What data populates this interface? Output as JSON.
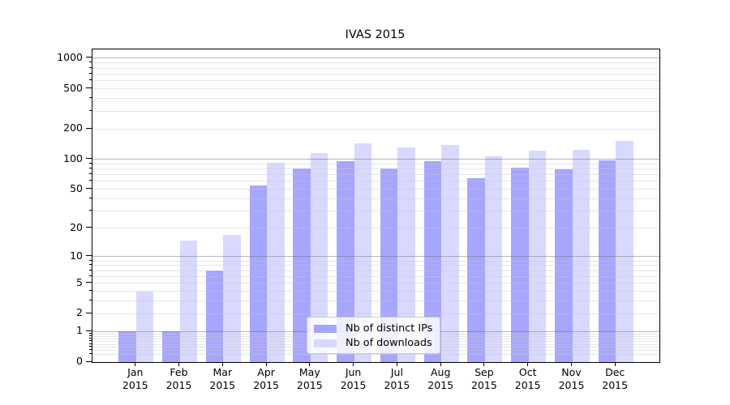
{
  "chart_data": {
    "type": "bar",
    "title": "IVAS 2015",
    "months": [
      "Jan",
      "Feb",
      "Mar",
      "Apr",
      "May",
      "Jun",
      "Jul",
      "Aug",
      "Sep",
      "Oct",
      "Nov",
      "Dec"
    ],
    "year": "2015",
    "series": [
      {
        "name": "Nb of distinct IPs",
        "color": "#a6a6ff",
        "values": [
          1,
          1,
          7,
          55,
          81,
          96,
          81,
          95,
          65,
          82,
          79,
          98
        ]
      },
      {
        "name": "Nb of downloads",
        "color": "#d9d9ff",
        "values": [
          4,
          15,
          17,
          92,
          114,
          145,
          131,
          138,
          107,
          122,
          125,
          151
        ]
      }
    ],
    "xlabel": "",
    "ylabel": "",
    "yscale": "log1p",
    "ylim": [
      0,
      1224
    ],
    "ytick_values": [
      0,
      1,
      2,
      5,
      10,
      20,
      50,
      100,
      200,
      500,
      1000
    ],
    "major_grid_values": [
      1,
      10,
      100,
      1000
    ],
    "minor_grid_values": [
      0.2,
      0.3,
      0.4,
      0.5,
      0.6,
      0.7,
      0.8,
      0.9,
      2,
      3,
      4,
      5,
      6,
      7,
      8,
      9,
      20,
      30,
      40,
      50,
      60,
      70,
      80,
      90,
      200,
      300,
      400,
      500,
      600,
      700,
      800,
      900
    ],
    "grid": true,
    "legend_position": "lower center"
  },
  "legend": {
    "items": [
      {
        "label": "Nb of distinct IPs",
        "swatch_color": "#a6a6ff"
      },
      {
        "label": "Nb of downloads",
        "swatch_color": "#d9d9ff"
      }
    ]
  }
}
